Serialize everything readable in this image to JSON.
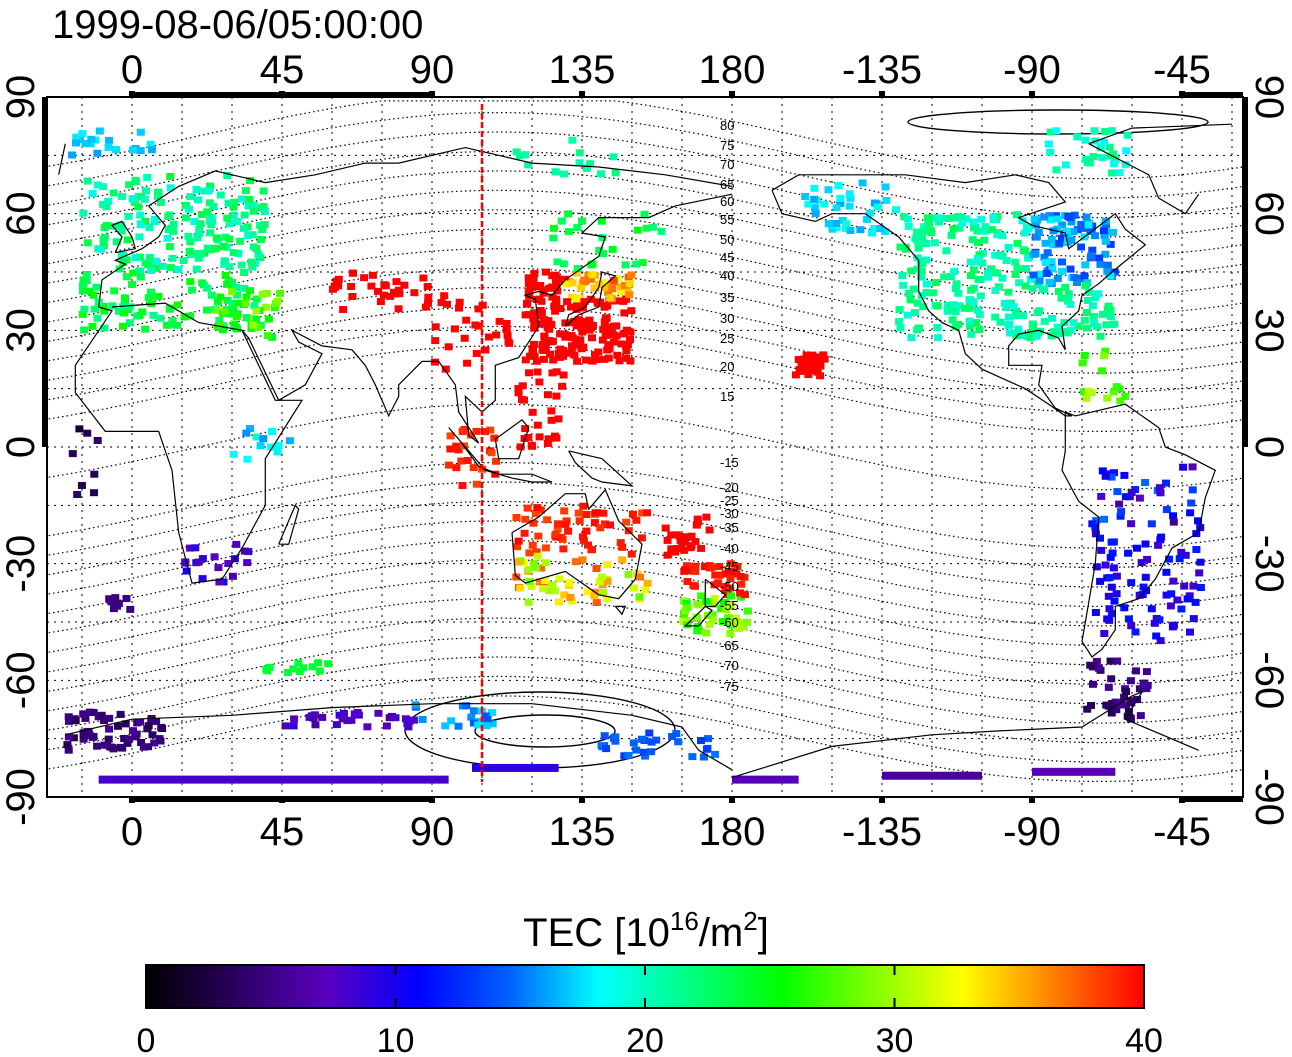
{
  "timestamp": "1999-08-06/05:00:00",
  "map": {
    "lon_tick_labels": [
      "0",
      "45",
      "90",
      "135",
      "180",
      "-135",
      "-90",
      "-45"
    ],
    "lat_tick_labels_left": [
      "90",
      "60",
      "30",
      "0",
      "-30",
      "-60",
      "-90"
    ],
    "lat_tick_labels_right": [
      "90",
      "60",
      "30",
      "0",
      "-30",
      "-60",
      "-90"
    ],
    "contour_labels_north": [
      "80",
      "75",
      "70",
      "65",
      "60",
      "55",
      "50",
      "45",
      "40",
      "35",
      "30",
      "25",
      "20",
      "15"
    ],
    "contour_labels_south": [
      "-15",
      "-20",
      "-25",
      "-30",
      "-35",
      "-40",
      "-45",
      "-50",
      "-55",
      "-60",
      "-65",
      "-70",
      "-75"
    ],
    "sun_longitude": 105,
    "colors": {
      "frame": "#000000",
      "coast": "#000000",
      "grid": "#000000",
      "meridian": "#ff0000"
    }
  },
  "chart_data": {
    "type": "heatmap",
    "value_range": [
      0,
      40
    ],
    "regions": [
      {
        "name": "europe",
        "lon": [
          -18,
          40
        ],
        "lat": [
          28,
          80
        ],
        "value": 22
      },
      {
        "name": "east-asia",
        "lon": [
          120,
          150
        ],
        "lat": [
          22,
          48
        ],
        "value": 40
      },
      {
        "name": "north-america",
        "lon": [
          -130,
          -65
        ],
        "lat": [
          25,
          65
        ],
        "value": 20
      },
      {
        "name": "hawaii",
        "lon": [
          -160,
          -154
        ],
        "lat": [
          18,
          24
        ],
        "value": 40
      },
      {
        "name": "south-america",
        "lon": [
          -75,
          -40
        ],
        "lat": [
          -55,
          5
        ],
        "value": 10
      },
      {
        "name": "australia",
        "lon": [
          115,
          155
        ],
        "lat": [
          -40,
          -15
        ],
        "value": 35
      },
      {
        "name": "new-zealand",
        "lon": [
          165,
          180
        ],
        "lat": [
          -48,
          -35
        ],
        "value": 28
      },
      {
        "name": "antarctica",
        "lon": [
          -180,
          180
        ],
        "lat": [
          -90,
          -85
        ],
        "value": 8
      }
    ]
  },
  "colorbar": {
    "title_base": "TEC  [10",
    "title_sup1": "16",
    "title_mid": "/m",
    "title_sup2": "2",
    "title_end": "]",
    "tick_labels": [
      "0",
      "10",
      "20",
      "30",
      "40"
    ],
    "stops": [
      "#000000",
      "#2a0060",
      "#5a00c0",
      "#0000ff",
      "#0060ff",
      "#00ffff",
      "#00ff80",
      "#00ff00",
      "#80ff00",
      "#ffff00",
      "#ff8000",
      "#ff0000"
    ]
  }
}
